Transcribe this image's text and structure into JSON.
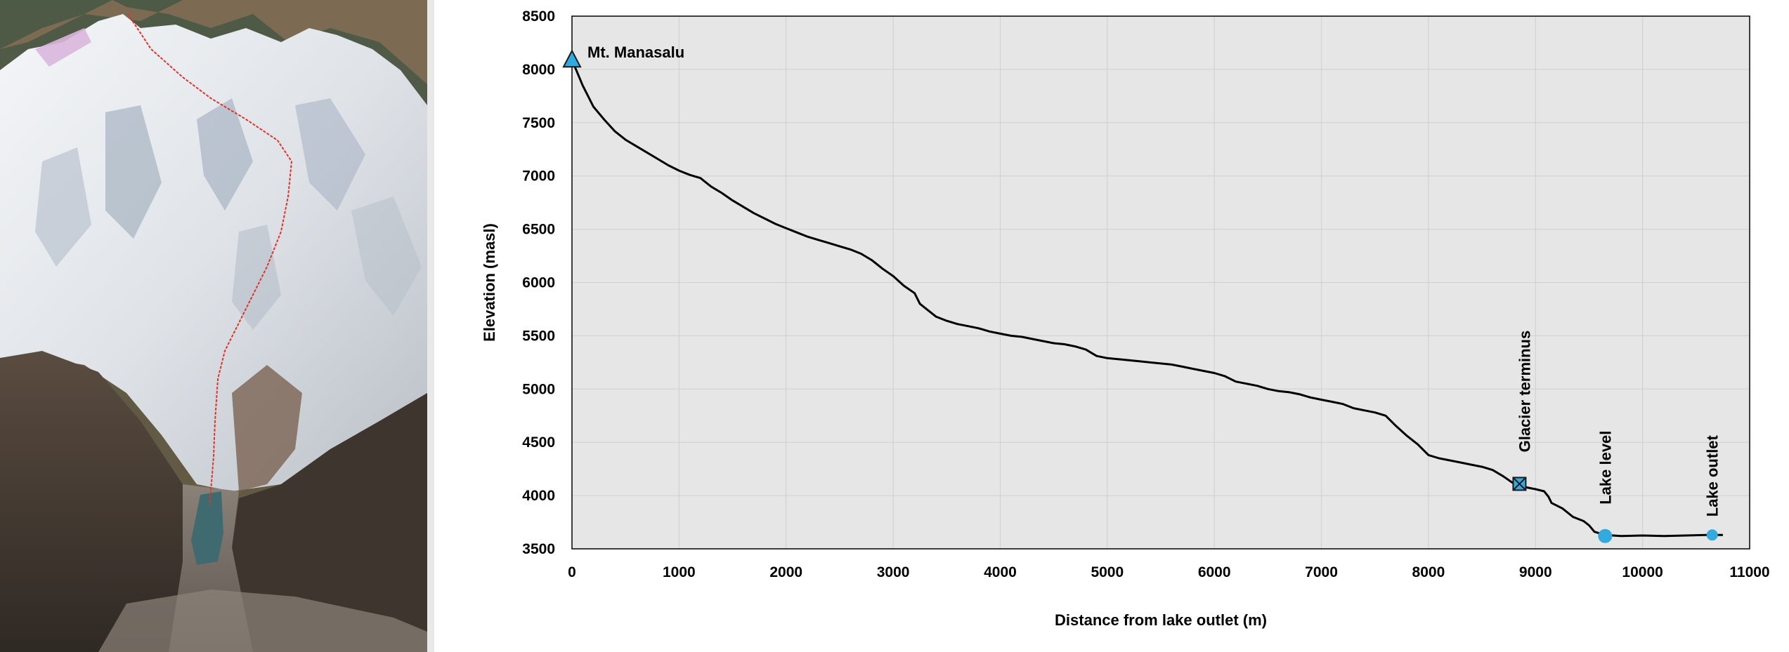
{
  "photo": {
    "description_icon": "mountain-photo",
    "route_color": "#e0342c",
    "lake_color": "#3f6b70"
  },
  "chart_data": {
    "type": "line",
    "title": "",
    "xlabel": "Distance from lake outlet (m)",
    "ylabel": "Elevation  (masl)",
    "xlim": [
      0,
      11000
    ],
    "ylim": [
      3500,
      8500
    ],
    "xticks": [
      0,
      1000,
      2000,
      3000,
      4000,
      5000,
      6000,
      7000,
      8000,
      9000,
      10000,
      11000
    ],
    "yticks": [
      3500,
      4000,
      4500,
      5000,
      5500,
      6000,
      6500,
      7000,
      7500,
      8000,
      8500
    ],
    "grid": true,
    "plot_background": "#e6e6e6",
    "line_color": "#000000",
    "marker_color": "#33aadd",
    "series": [
      {
        "name": "",
        "points": [
          [
            0,
            8090
          ],
          [
            100,
            7850
          ],
          [
            200,
            7650
          ],
          [
            300,
            7530
          ],
          [
            400,
            7420
          ],
          [
            500,
            7340
          ],
          [
            600,
            7280
          ],
          [
            700,
            7220
          ],
          [
            800,
            7160
          ],
          [
            900,
            7100
          ],
          [
            1000,
            7050
          ],
          [
            1100,
            7010
          ],
          [
            1200,
            6980
          ],
          [
            1300,
            6900
          ],
          [
            1400,
            6840
          ],
          [
            1500,
            6770
          ],
          [
            1600,
            6710
          ],
          [
            1700,
            6650
          ],
          [
            1800,
            6600
          ],
          [
            1900,
            6550
          ],
          [
            2000,
            6510
          ],
          [
            2100,
            6470
          ],
          [
            2200,
            6430
          ],
          [
            2300,
            6400
          ],
          [
            2400,
            6370
          ],
          [
            2500,
            6340
          ],
          [
            2600,
            6310
          ],
          [
            2700,
            6270
          ],
          [
            2800,
            6210
          ],
          [
            2900,
            6130
          ],
          [
            3000,
            6060
          ],
          [
            3100,
            5970
          ],
          [
            3200,
            5900
          ],
          [
            3250,
            5800
          ],
          [
            3400,
            5680
          ],
          [
            3500,
            5640
          ],
          [
            3600,
            5610
          ],
          [
            3700,
            5590
          ],
          [
            3800,
            5570
          ],
          [
            3900,
            5540
          ],
          [
            4000,
            5520
          ],
          [
            4100,
            5500
          ],
          [
            4200,
            5490
          ],
          [
            4300,
            5470
          ],
          [
            4400,
            5450
          ],
          [
            4500,
            5430
          ],
          [
            4600,
            5420
          ],
          [
            4700,
            5400
          ],
          [
            4800,
            5370
          ],
          [
            4900,
            5310
          ],
          [
            5000,
            5290
          ],
          [
            5100,
            5280
          ],
          [
            5200,
            5270
          ],
          [
            5300,
            5260
          ],
          [
            5400,
            5250
          ],
          [
            5500,
            5240
          ],
          [
            5600,
            5230
          ],
          [
            5700,
            5210
          ],
          [
            5800,
            5190
          ],
          [
            5900,
            5170
          ],
          [
            6000,
            5150
          ],
          [
            6100,
            5120
          ],
          [
            6200,
            5070
          ],
          [
            6300,
            5050
          ],
          [
            6400,
            5030
          ],
          [
            6500,
            5000
          ],
          [
            6600,
            4980
          ],
          [
            6700,
            4970
          ],
          [
            6800,
            4950
          ],
          [
            6900,
            4920
          ],
          [
            7000,
            4900
          ],
          [
            7100,
            4880
          ],
          [
            7200,
            4860
          ],
          [
            7300,
            4820
          ],
          [
            7400,
            4800
          ],
          [
            7500,
            4780
          ],
          [
            7600,
            4750
          ],
          [
            7700,
            4650
          ],
          [
            7800,
            4560
          ],
          [
            7900,
            4480
          ],
          [
            8000,
            4380
          ],
          [
            8100,
            4350
          ],
          [
            8200,
            4330
          ],
          [
            8300,
            4310
          ],
          [
            8400,
            4290
          ],
          [
            8500,
            4270
          ],
          [
            8600,
            4240
          ],
          [
            8700,
            4180
          ],
          [
            8800,
            4110
          ],
          [
            8900,
            4080
          ],
          [
            9000,
            4060
          ],
          [
            9080,
            4040
          ],
          [
            9120,
            3990
          ],
          [
            9150,
            3930
          ],
          [
            9250,
            3880
          ],
          [
            9350,
            3800
          ],
          [
            9450,
            3760
          ],
          [
            9500,
            3720
          ],
          [
            9550,
            3660
          ],
          [
            9650,
            3630
          ],
          [
            9800,
            3620
          ],
          [
            10000,
            3625
          ],
          [
            10200,
            3620
          ],
          [
            10400,
            3625
          ],
          [
            10600,
            3630
          ],
          [
            10750,
            3630
          ]
        ]
      }
    ],
    "annotations": [
      {
        "label": "Mt. Manasalu",
        "x": 0,
        "y": 8090,
        "marker": "triangle",
        "orientation": "horizontal"
      },
      {
        "label": "Glacier terminus",
        "x": 8850,
        "y": 4110,
        "marker": "square-x",
        "orientation": "vertical"
      },
      {
        "label": "Lake level",
        "x": 9650,
        "y": 3620,
        "marker": "circle-large",
        "orientation": "vertical"
      },
      {
        "label": "Lake outlet",
        "x": 10650,
        "y": 3630,
        "marker": "circle",
        "orientation": "vertical"
      }
    ]
  }
}
